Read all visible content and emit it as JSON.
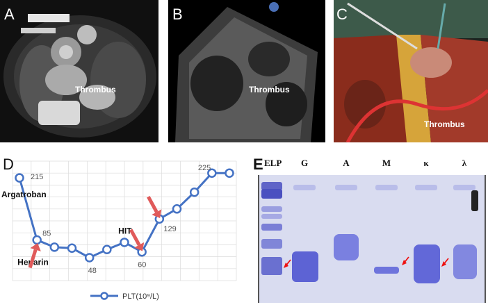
{
  "panels": {
    "a": {
      "letter": "A",
      "label": "Thrombus"
    },
    "b": {
      "letter": "B",
      "label": "Thrombus"
    },
    "c": {
      "letter": "C",
      "label": "Thrombus"
    },
    "d": {
      "letter": "D"
    },
    "e": {
      "letter": "E"
    }
  },
  "chart_data": {
    "type": "line",
    "x": [
      1,
      2,
      3,
      4,
      5,
      6,
      7,
      8,
      9,
      10,
      11,
      12,
      13
    ],
    "series": [
      {
        "name": "PLT(10⁹/L)",
        "values": [
          215,
          85,
          70,
          68,
          48,
          65,
          80,
          60,
          129,
          150,
          185,
          225,
          225
        ],
        "color": "#4472c4"
      }
    ],
    "data_labels": [
      {
        "index": 0,
        "text": "215"
      },
      {
        "index": 1,
        "text": "85"
      },
      {
        "index": 4,
        "text": "48"
      },
      {
        "index": 7,
        "text": "60"
      },
      {
        "index": 8,
        "text": "129"
      },
      {
        "index": 11,
        "text": "225"
      }
    ],
    "annotations": [
      {
        "index": 0,
        "text": "Argatroban",
        "arrow": false
      },
      {
        "index": 1,
        "text": "Heparin",
        "arrow": true
      },
      {
        "index": 7,
        "text": "HIT",
        "arrow": true
      },
      {
        "index": 8,
        "text": "",
        "arrow": true
      }
    ],
    "grid": true,
    "legend": "bottom",
    "ylim": [
      0,
      250
    ]
  },
  "gel": {
    "lanes": [
      "ELP",
      "G",
      "A",
      "M",
      "κ",
      "λ"
    ]
  }
}
